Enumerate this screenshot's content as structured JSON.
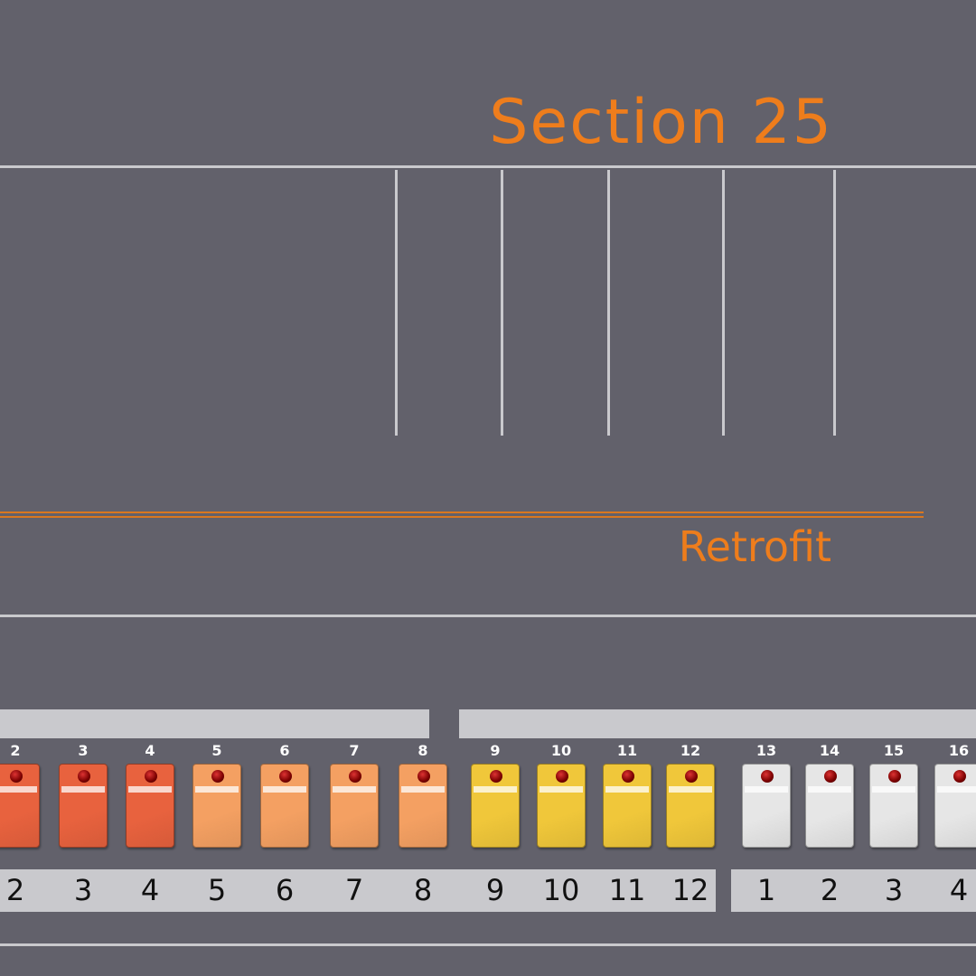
{
  "header": {
    "title": "Section 25",
    "subtitle": "Retrofit"
  },
  "step_groups": [
    {
      "color": "#e8623e",
      "steps": [
        {
          "number": "2",
          "label": "2"
        },
        {
          "number": "3",
          "label": "3"
        },
        {
          "number": "4",
          "label": "4"
        }
      ]
    },
    {
      "color": "#f4a062",
      "steps": [
        {
          "number": "5",
          "label": "5"
        },
        {
          "number": "6",
          "label": "6"
        },
        {
          "number": "7",
          "label": "7"
        },
        {
          "number": "8",
          "label": "8"
        }
      ]
    },
    {
      "color": "#f0c73a",
      "steps": [
        {
          "number": "9",
          "label": "9"
        },
        {
          "number": "10",
          "label": "10"
        },
        {
          "number": "11",
          "label": "11"
        },
        {
          "number": "12",
          "label": "12"
        }
      ]
    },
    {
      "color": "#e6e6e6",
      "steps": [
        {
          "number": "13",
          "label": "1"
        },
        {
          "number": "14",
          "label": "2"
        },
        {
          "number": "15",
          "label": "3"
        },
        {
          "number": "16",
          "label": "4"
        }
      ]
    }
  ]
}
